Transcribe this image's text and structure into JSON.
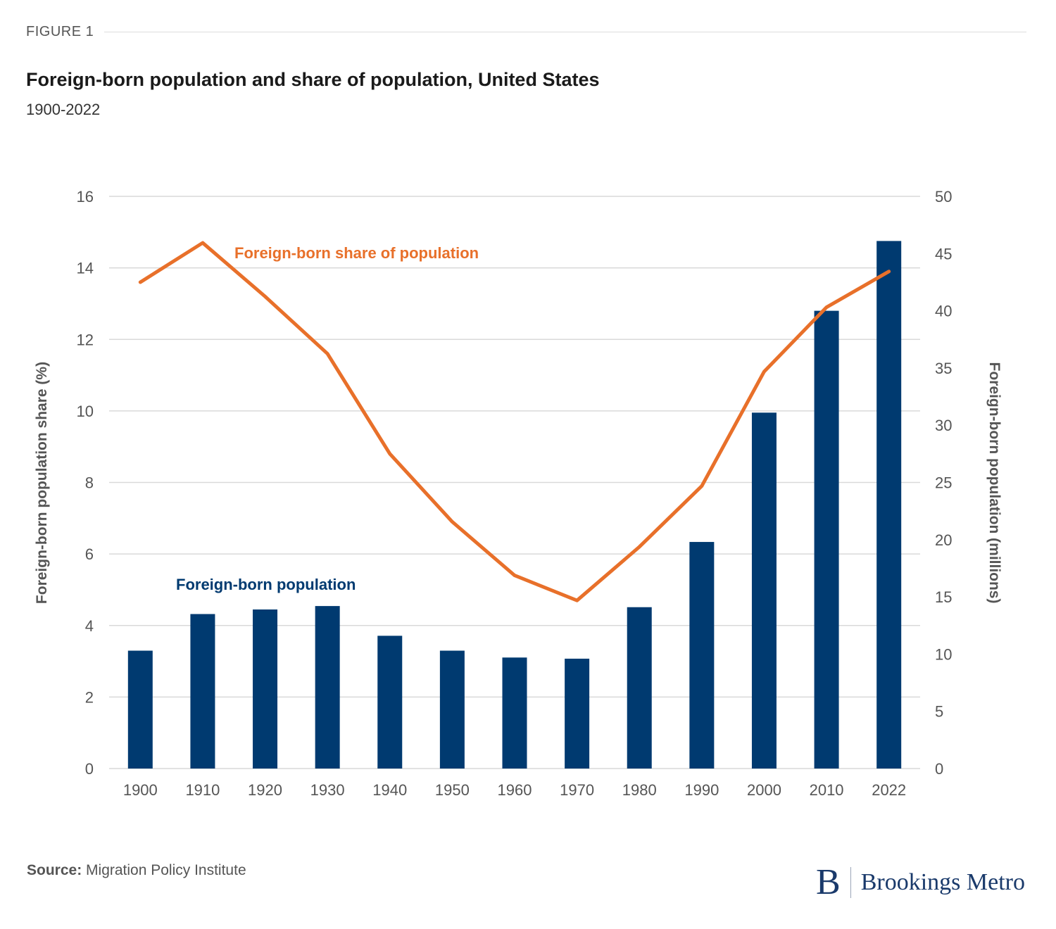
{
  "figure_label": "FIGURE 1",
  "title": "Foreign-born population and share of population, United States",
  "subtitle": "1900-2022",
  "source_label": "Source:",
  "source_text": "Migration Policy Institute",
  "brand": {
    "mark": "B",
    "name": "Brookings Metro"
  },
  "colors": {
    "bars": "#003a70",
    "line": "#e8702a",
    "grid": "#d9d9d9",
    "axis_text": "#555555"
  },
  "chart_data": {
    "type": "bar",
    "categories": [
      "1900",
      "1910",
      "1920",
      "1930",
      "1940",
      "1950",
      "1960",
      "1970",
      "1980",
      "1990",
      "2000",
      "2010",
      "2022"
    ],
    "series": [
      {
        "name": "Foreign-born population",
        "type": "bar",
        "axis": "right",
        "values": [
          10.3,
          13.5,
          13.9,
          14.2,
          11.6,
          10.3,
          9.7,
          9.6,
          14.1,
          19.8,
          31.1,
          40.0,
          46.1
        ]
      },
      {
        "name": "Foreign-born share of population",
        "type": "line",
        "axis": "left",
        "values": [
          13.6,
          14.7,
          13.2,
          11.6,
          8.8,
          6.9,
          5.4,
          4.7,
          6.2,
          7.9,
          11.1,
          12.9,
          13.9
        ]
      }
    ],
    "ylabel_left": "Foreign-born population share (%)",
    "ylabel_right": "Foreign-born population (millions)",
    "ylim_left": [
      0,
      16
    ],
    "yticks_left": [
      0,
      2,
      4,
      6,
      8,
      10,
      12,
      14,
      16
    ],
    "ylim_right": [
      0,
      50
    ],
    "yticks_right": [
      0,
      5,
      10,
      15,
      20,
      25,
      30,
      35,
      40,
      45,
      50
    ],
    "grid": true,
    "legend": "inline labels"
  }
}
